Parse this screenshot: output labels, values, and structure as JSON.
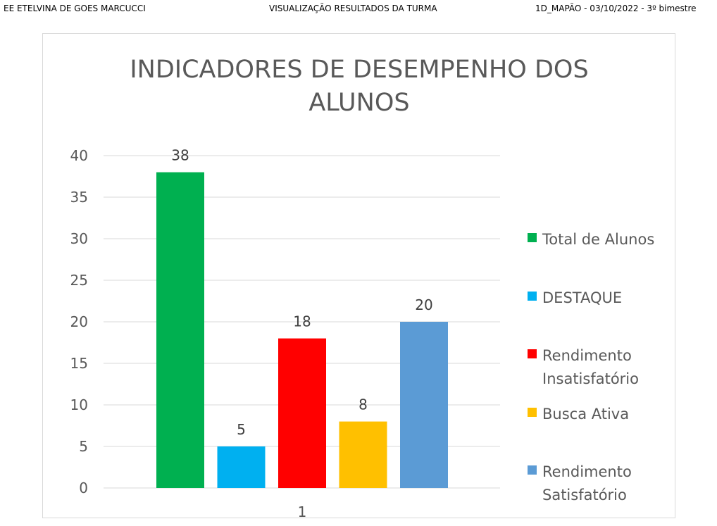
{
  "header": {
    "school": "EE ETELVINA DE GOES MARCUCCI",
    "view": "VISUALIZAÇÃO  RESULTADOS DA TURMA",
    "info": "1D_MAPÃO - 03/10/2022 - 3º bimestre"
  },
  "chart_data": {
    "type": "bar",
    "title_lines": [
      "INDICADORES DE DESEMPENHO DOS",
      "ALUNOS"
    ],
    "categories": [
      "1"
    ],
    "series": [
      {
        "name": "Total de Alunos",
        "name_lines": [
          "Total de Alunos"
        ],
        "values": [
          38
        ],
        "color": "#00b050"
      },
      {
        "name": "DESTAQUE",
        "name_lines": [
          "DESTAQUE"
        ],
        "values": [
          5
        ],
        "color": "#00b0f0"
      },
      {
        "name": "Rendimento Insatisfatório",
        "name_lines": [
          "Rendimento",
          "Insatisfatório"
        ],
        "values": [
          18
        ],
        "color": "#ff0000"
      },
      {
        "name": "Busca Ativa",
        "name_lines": [
          "Busca Ativa"
        ],
        "values": [
          8
        ],
        "color": "#ffc000"
      },
      {
        "name": "Rendimento Satisfatório",
        "name_lines": [
          "Rendimento",
          "Satisfatório"
        ],
        "values": [
          20
        ],
        "color": "#5b9bd5"
      }
    ],
    "yticks": [
      0,
      5,
      10,
      15,
      20,
      25,
      30,
      35,
      40
    ],
    "ylim": [
      0,
      40
    ],
    "grid": true,
    "legend_position": "right",
    "data_labels": true
  }
}
